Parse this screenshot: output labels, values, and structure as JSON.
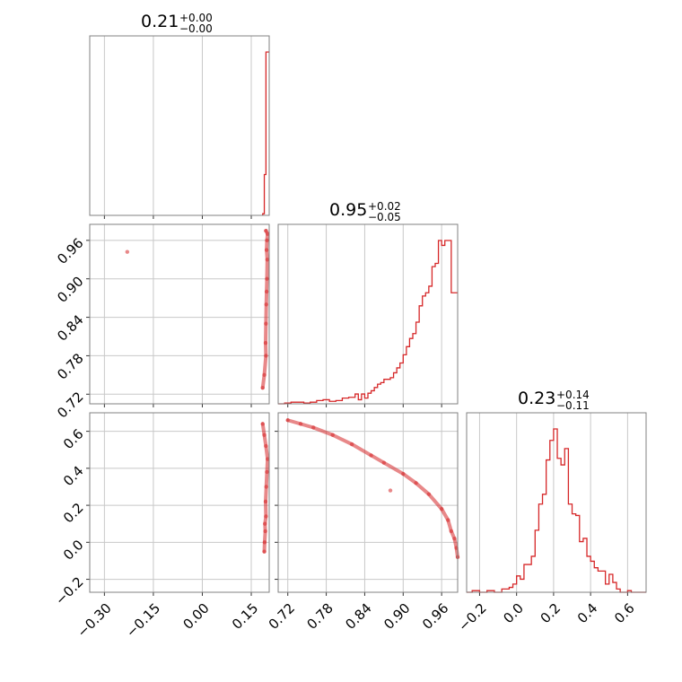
{
  "colors": {
    "series": "#d62728",
    "grid": "#c8c8c8",
    "frame": "#808080"
  },
  "titles": [
    {
      "value": "0.21",
      "plus": "+0.00",
      "minus": "−0.00"
    },
    {
      "value": "0.95",
      "plus": "+0.02",
      "minus": "−0.05"
    },
    {
      "value": "0.23",
      "plus": "+0.14",
      "minus": "−0.11"
    }
  ],
  "chart_data": [
    {
      "type": "histogram",
      "panel": "diag-1",
      "xlim": [
        -0.345,
        0.205
      ],
      "bins": [
        0.185,
        0.19,
        0.195,
        0.2,
        0.205
      ],
      "counts": [
        0.01,
        0.25,
        1.0,
        1.0
      ]
    },
    {
      "type": "histogram",
      "panel": "diag-2",
      "xlim": [
        0.705,
        0.985
      ],
      "bins": [
        0.705,
        0.715,
        0.725,
        0.735,
        0.745,
        0.755,
        0.765,
        0.775,
        0.785,
        0.795,
        0.805,
        0.815,
        0.825,
        0.83,
        0.835,
        0.84,
        0.845,
        0.85,
        0.855,
        0.86,
        0.865,
        0.87,
        0.875,
        0.88,
        0.885,
        0.89,
        0.895,
        0.9,
        0.905,
        0.91,
        0.915,
        0.92,
        0.925,
        0.93,
        0.935,
        0.94,
        0.945,
        0.95,
        0.955,
        0.96,
        0.965,
        0.97,
        0.975,
        0.98,
        0.985
      ],
      "counts": [
        0.0,
        0.005,
        0.01,
        0.01,
        0.005,
        0.01,
        0.02,
        0.025,
        0.015,
        0.02,
        0.035,
        0.04,
        0.06,
        0.025,
        0.06,
        0.035,
        0.065,
        0.08,
        0.1,
        0.12,
        0.13,
        0.15,
        0.15,
        0.16,
        0.19,
        0.22,
        0.25,
        0.3,
        0.35,
        0.4,
        0.43,
        0.5,
        0.6,
        0.66,
        0.68,
        0.72,
        0.84,
        0.86,
        1.0,
        0.97,
        1.0,
        1.0,
        0.68,
        0.68
      ]
    },
    {
      "type": "histogram",
      "panel": "diag-3",
      "xlim": [
        -0.27,
        0.7
      ],
      "bins": [
        -0.27,
        -0.24,
        -0.2,
        -0.16,
        -0.12,
        -0.08,
        -0.04,
        -0.02,
        0.0,
        0.02,
        0.04,
        0.06,
        0.08,
        0.1,
        0.12,
        0.14,
        0.16,
        0.18,
        0.2,
        0.22,
        0.24,
        0.26,
        0.28,
        0.3,
        0.32,
        0.34,
        0.36,
        0.38,
        0.4,
        0.42,
        0.44,
        0.46,
        0.48,
        0.5,
        0.52,
        0.54,
        0.56,
        0.58,
        0.6,
        0.62,
        0.64,
        0.66,
        0.7
      ],
      "counts": [
        0.0,
        0.01,
        0.0,
        0.01,
        0.0,
        0.02,
        0.03,
        0.05,
        0.1,
        0.08,
        0.17,
        0.17,
        0.22,
        0.38,
        0.54,
        0.6,
        0.81,
        0.93,
        1.0,
        0.82,
        0.78,
        0.88,
        0.54,
        0.48,
        0.47,
        0.31,
        0.33,
        0.22,
        0.19,
        0.15,
        0.13,
        0.13,
        0.05,
        0.11,
        0.06,
        0.02,
        0.0,
        0.0,
        0.01,
        0.0,
        0.0,
        0.0
      ]
    },
    {
      "type": "scatter",
      "panel": "pair-2-1",
      "xlim": [
        -0.345,
        0.205
      ],
      "ylim": [
        0.705,
        0.985
      ],
      "points": [
        [
          0.195,
          0.975
        ],
        [
          0.2,
          0.97
        ],
        [
          0.198,
          0.96
        ],
        [
          0.197,
          0.945
        ],
        [
          0.199,
          0.93
        ],
        [
          0.198,
          0.9
        ],
        [
          0.197,
          0.88
        ],
        [
          0.196,
          0.86
        ],
        [
          0.195,
          0.83
        ],
        [
          0.194,
          0.8
        ],
        [
          0.195,
          0.78
        ],
        [
          0.19,
          0.75
        ],
        [
          0.185,
          0.73
        ],
        [
          -0.23,
          0.942
        ]
      ]
    },
    {
      "type": "scatter",
      "panel": "pair-3-1",
      "xlim": [
        -0.345,
        0.205
      ],
      "ylim": [
        -0.27,
        0.7
      ],
      "points": [
        [
          0.185,
          0.64
        ],
        [
          0.19,
          0.58
        ],
        [
          0.195,
          0.52
        ],
        [
          0.2,
          0.45
        ],
        [
          0.198,
          0.38
        ],
        [
          0.196,
          0.3
        ],
        [
          0.194,
          0.22
        ],
        [
          0.195,
          0.14
        ],
        [
          0.192,
          0.1
        ],
        [
          0.193,
          0.06
        ],
        [
          0.191,
          0.0
        ],
        [
          0.19,
          -0.05
        ]
      ]
    },
    {
      "type": "scatter",
      "panel": "pair-3-2",
      "xlim": [
        0.705,
        0.985
      ],
      "ylim": [
        -0.27,
        0.7
      ],
      "points": [
        [
          0.72,
          0.66
        ],
        [
          0.74,
          0.64
        ],
        [
          0.76,
          0.62
        ],
        [
          0.79,
          0.58
        ],
        [
          0.82,
          0.53
        ],
        [
          0.85,
          0.47
        ],
        [
          0.87,
          0.43
        ],
        [
          0.9,
          0.37
        ],
        [
          0.92,
          0.32
        ],
        [
          0.94,
          0.26
        ],
        [
          0.96,
          0.18
        ],
        [
          0.97,
          0.12
        ],
        [
          0.975,
          0.06
        ],
        [
          0.98,
          0.02
        ],
        [
          0.983,
          -0.03
        ],
        [
          0.985,
          -0.08
        ],
        [
          0.88,
          0.28
        ]
      ]
    }
  ],
  "axes": {
    "x1": {
      "ticks": [
        -0.3,
        -0.15,
        0.0,
        0.15
      ],
      "labels": [
        "−0.30",
        "−0.15",
        "0.00",
        "0.15"
      ]
    },
    "x2": {
      "ticks": [
        0.72,
        0.78,
        0.84,
        0.9,
        0.96
      ],
      "labels": [
        "0.72",
        "0.78",
        "0.84",
        "0.90",
        "0.96"
      ]
    },
    "x3": {
      "ticks": [
        -0.2,
        0.0,
        0.2,
        0.4,
        0.6
      ],
      "labels": [
        "−0.2",
        "0.0",
        "0.2",
        "0.4",
        "0.6"
      ]
    },
    "y2": {
      "ticks": [
        0.72,
        0.78,
        0.84,
        0.9,
        0.96
      ],
      "labels": [
        "0.72",
        "0.78",
        "0.84",
        "0.90",
        "0.96"
      ]
    },
    "y3": {
      "ticks": [
        -0.2,
        0.0,
        0.2,
        0.4,
        0.6
      ],
      "labels": [
        "−0.2",
        "0.0",
        "0.2",
        "0.4",
        "0.6"
      ]
    }
  }
}
